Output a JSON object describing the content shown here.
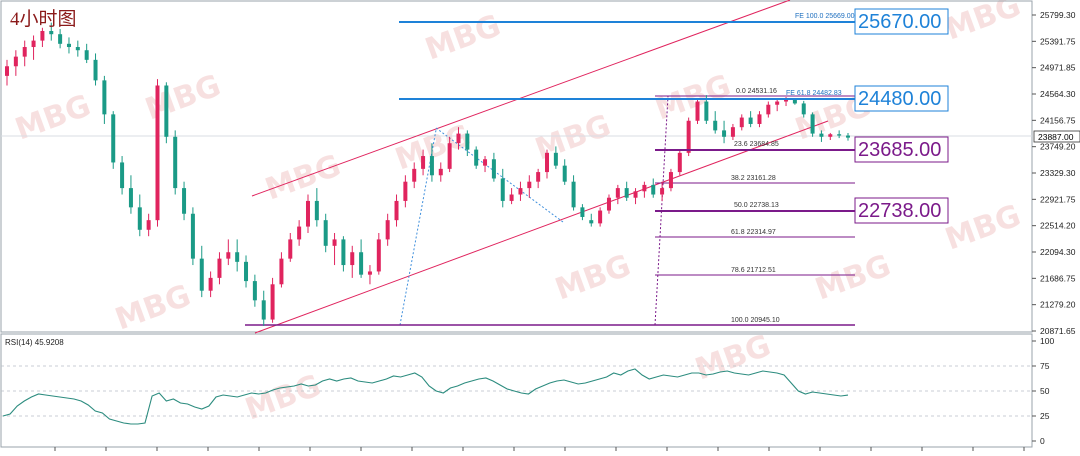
{
  "chart_title": "4小时图",
  "colors": {
    "bull": "#e0245e",
    "bear": "#1a9a86",
    "channel": "#e0245e",
    "fib": "#7b1a8a",
    "blue_level": "#1e82d8",
    "dashed_blue": "#3f8fdc",
    "rsi": "#2c8c7f",
    "watermark": "#f1c7c7"
  },
  "watermark": "MBG",
  "price_axis": {
    "ticks": [
      "25799.30",
      "25391.75",
      "24971.85",
      "24564.30",
      "24156.75",
      "23749.20",
      "23329.30",
      "22921.75",
      "22514.20",
      "22094.30",
      "21686.75",
      "21279.20",
      "20871.65"
    ],
    "current_price": "23887.00"
  },
  "levels": [
    {
      "label": "25670.00",
      "line_text": "FE 100.0  25669.00",
      "style": "blue"
    },
    {
      "label": "24480.00",
      "line_text": "FE 61.8  24482.83",
      "style": "blue"
    },
    {
      "label": "23685.00",
      "line_text": "23.6  23684.85",
      "style": "fib"
    },
    {
      "label": "22738.00",
      "line_text": "50.0  22738.13",
      "style": "fib"
    }
  ],
  "fib_lines": [
    {
      "text": "0.0  24531.16"
    },
    {
      "text": "38.2  23161.28"
    },
    {
      "text": "61.8  22314.97"
    },
    {
      "text": "78.6  21712.51"
    },
    {
      "text": "100.0  20945.10"
    }
  ],
  "rsi": {
    "label": "RSI(14) 45.9208",
    "ticks": [
      "100",
      "75",
      "50",
      "25",
      "0"
    ],
    "values": [
      25,
      27,
      35,
      40,
      44,
      47,
      46,
      45,
      44,
      43,
      42,
      40,
      36,
      30,
      28,
      22,
      20,
      18,
      17,
      17,
      18,
      45,
      48,
      40,
      42,
      38,
      37,
      34,
      32,
      35,
      44,
      46,
      45,
      44,
      46,
      48,
      47,
      48,
      51,
      53,
      54,
      55,
      57,
      55,
      56,
      60,
      62,
      60,
      62,
      63,
      60,
      59,
      58,
      60,
      62,
      65,
      64,
      66,
      68,
      64,
      55,
      50,
      48,
      53,
      55,
      58,
      60,
      62,
      63,
      60,
      56,
      52,
      50,
      48,
      47,
      52,
      55,
      58,
      60,
      61,
      59,
      57,
      58,
      60,
      62,
      64,
      68,
      66,
      70,
      72,
      66,
      62,
      64,
      66,
      65,
      64,
      66,
      68,
      68,
      66,
      67,
      69,
      70,
      68,
      67,
      66,
      68,
      70,
      69,
      68,
      66,
      58,
      50,
      47,
      49,
      48,
      47,
      46,
      45,
      45.9
    ]
  },
  "chart_data": {
    "type": "candlestick",
    "title": "4小时图",
    "ylim": [
      20871.65,
      25799.3
    ],
    "candles": [
      [
        24850,
        25100,
        24700,
        25000
      ],
      [
        25000,
        25250,
        24850,
        25150
      ],
      [
        25150,
        25400,
        25000,
        25300
      ],
      [
        25300,
        25480,
        25100,
        25400
      ],
      [
        25400,
        25600,
        25300,
        25550
      ],
      [
        25550,
        25680,
        25400,
        25500
      ],
      [
        25500,
        25580,
        25280,
        25350
      ],
      [
        25350,
        25450,
        25200,
        25300
      ],
      [
        25300,
        25400,
        25150,
        25250
      ],
      [
        25250,
        25350,
        25050,
        25100
      ],
      [
        25100,
        25200,
        24700,
        24780
      ],
      [
        24780,
        24850,
        24100,
        24250
      ],
      [
        24250,
        24300,
        23400,
        23500
      ],
      [
        23500,
        23600,
        23000,
        23100
      ],
      [
        23100,
        23300,
        22700,
        22800
      ],
      [
        22800,
        23000,
        22350,
        22450
      ],
      [
        22450,
        22700,
        22350,
        22600
      ],
      [
        22600,
        24800,
        22500,
        24700
      ],
      [
        24700,
        24750,
        23800,
        23900
      ],
      [
        23900,
        24000,
        23000,
        23100
      ],
      [
        23100,
        23200,
        22600,
        22700
      ],
      [
        22700,
        22800,
        21900,
        22000
      ],
      [
        22000,
        22200,
        21400,
        21500
      ],
      [
        21500,
        21800,
        21400,
        21700
      ],
      [
        21700,
        22100,
        21600,
        22000
      ],
      [
        22000,
        22300,
        21900,
        22100
      ],
      [
        22100,
        22300,
        21800,
        21950
      ],
      [
        21950,
        22050,
        21550,
        21650
      ],
      [
        21650,
        21750,
        21250,
        21350
      ],
      [
        21350,
        21500,
        20950,
        21050
      ],
      [
        21050,
        21700,
        21000,
        21600
      ],
      [
        21600,
        22100,
        21550,
        22000
      ],
      [
        22000,
        22400,
        21950,
        22300
      ],
      [
        22300,
        22600,
        22200,
        22500
      ],
      [
        22500,
        23000,
        22400,
        22900
      ],
      [
        22900,
        23100,
        22500,
        22600
      ],
      [
        22600,
        22700,
        22100,
        22200
      ],
      [
        22200,
        22400,
        21900,
        22300
      ],
      [
        22300,
        22350,
        21800,
        21900
      ],
      [
        21900,
        22200,
        21700,
        22100
      ],
      [
        22100,
        22300,
        21700,
        21750
      ],
      [
        21750,
        21900,
        21600,
        21800
      ],
      [
        21800,
        22400,
        21750,
        22300
      ],
      [
        22300,
        22700,
        22200,
        22600
      ],
      [
        22600,
        23000,
        22500,
        22900
      ],
      [
        22900,
        23300,
        22800,
        23200
      ],
      [
        23200,
        23500,
        23100,
        23400
      ],
      [
        23400,
        23700,
        23300,
        23600
      ],
      [
        23600,
        23800,
        23200,
        23300
      ],
      [
        23300,
        23500,
        23200,
        23400
      ],
      [
        23400,
        23900,
        23350,
        23800
      ],
      [
        23800,
        24050,
        23700,
        23950
      ],
      [
        23950,
        24000,
        23600,
        23700
      ],
      [
        23700,
        23750,
        23400,
        23450
      ],
      [
        23450,
        23600,
        23350,
        23550
      ],
      [
        23550,
        23650,
        23200,
        23250
      ],
      [
        23250,
        23400,
        22800,
        22900
      ],
      [
        22900,
        23100,
        22850,
        23000
      ],
      [
        23000,
        23200,
        22900,
        23100
      ],
      [
        23100,
        23300,
        22950,
        23200
      ],
      [
        23200,
        23400,
        23100,
        23350
      ],
      [
        23350,
        23700,
        23250,
        23650
      ],
      [
        23650,
        23750,
        23400,
        23450
      ],
      [
        23450,
        23550,
        23150,
        23200
      ],
      [
        23200,
        23300,
        22750,
        22800
      ],
      [
        22800,
        22850,
        22600,
        22650
      ],
      [
        22600,
        22700,
        22500,
        22550
      ],
      [
        22550,
        22800,
        22500,
        22750
      ],
      [
        22750,
        23000,
        22700,
        22950
      ],
      [
        22950,
        23150,
        22850,
        23100
      ],
      [
        23100,
        23200,
        22900,
        22950
      ],
      [
        22950,
        23100,
        22850,
        23050
      ],
      [
        23050,
        23200,
        22950,
        23150
      ],
      [
        23150,
        23250,
        22950,
        23000
      ],
      [
        23000,
        23200,
        22900,
        23100
      ],
      [
        23100,
        23400,
        23050,
        23350
      ],
      [
        23350,
        23700,
        23300,
        23650
      ],
      [
        23650,
        24200,
        23600,
        24150
      ],
      [
        24150,
        24500,
        24100,
        24450
      ],
      [
        24450,
        24550,
        24100,
        24150
      ],
      [
        24150,
        24300,
        23950,
        24000
      ],
      [
        24000,
        24150,
        23800,
        23900
      ],
      [
        23900,
        24100,
        23850,
        24050
      ],
      [
        24050,
        24250,
        24000,
        24200
      ],
      [
        24200,
        24300,
        24050,
        24100
      ],
      [
        24100,
        24300,
        24050,
        24250
      ],
      [
        24250,
        24450,
        24200,
        24400
      ],
      [
        24400,
        24500,
        24300,
        24450
      ],
      [
        24450,
        24520,
        24380,
        24480
      ],
      [
        24480,
        24500,
        24400,
        24420
      ],
      [
        24420,
        24460,
        24200,
        24250
      ],
      [
        24250,
        24280,
        23900,
        23950
      ],
      [
        23950,
        24000,
        23820,
        23900
      ],
      [
        23900,
        23960,
        23850,
        23940
      ],
      [
        23940,
        24000,
        23880,
        23920
      ],
      [
        23920,
        23960,
        23840,
        23887
      ]
    ],
    "channel": {
      "upper": [
        [
          20871.65,
          20871.65
        ]
      ],
      "note": ""
    }
  }
}
